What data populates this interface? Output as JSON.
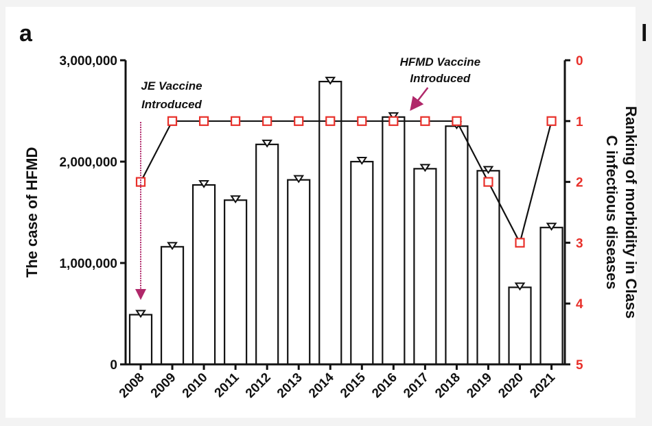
{
  "panel_label": "a",
  "partial_label": "l",
  "chart_data": {
    "type": "bar",
    "categories": [
      "2008",
      "2009",
      "2010",
      "2011",
      "2012",
      "2013",
      "2014",
      "2015",
      "2016",
      "2017",
      "2018",
      "2019",
      "2020",
      "2021"
    ],
    "series": [
      {
        "values": [
          490000,
          1160000,
          1770000,
          1620000,
          2170000,
          1820000,
          2790000,
          2000000,
          2440000,
          1930000,
          2350000,
          1910000,
          760000,
          1350000
        ]
      },
      {
        "values": [
          2,
          1,
          1,
          1,
          1,
          1,
          1,
          1,
          1,
          1,
          1,
          2,
          3,
          1
        ]
      }
    ],
    "y_left": {
      "label": "The case of HFMD",
      "range": [
        0,
        3000000
      ],
      "ticks": [
        "0",
        "1,000,000",
        "2,000,000",
        "3,000,000"
      ]
    },
    "y_right": {
      "label_line1": "Ranking of morbidity in Class",
      "label_line2": "C infectious diseases",
      "range": [
        0,
        5
      ],
      "inverted": true,
      "ticks": [
        "0",
        "1",
        "2",
        "3",
        "4",
        "5"
      ]
    },
    "annotations": [
      {
        "lines": [
          "JE Vaccine",
          "Introduced"
        ],
        "at": "2008"
      },
      {
        "lines": [
          "HFMD Vaccine",
          "Introduced"
        ],
        "at": "2016"
      }
    ],
    "colors": {
      "bars": "#111111",
      "rank_markers": "#e8302a",
      "right_axis_labels": "#e8302a",
      "arrow": "#b0286a"
    }
  }
}
